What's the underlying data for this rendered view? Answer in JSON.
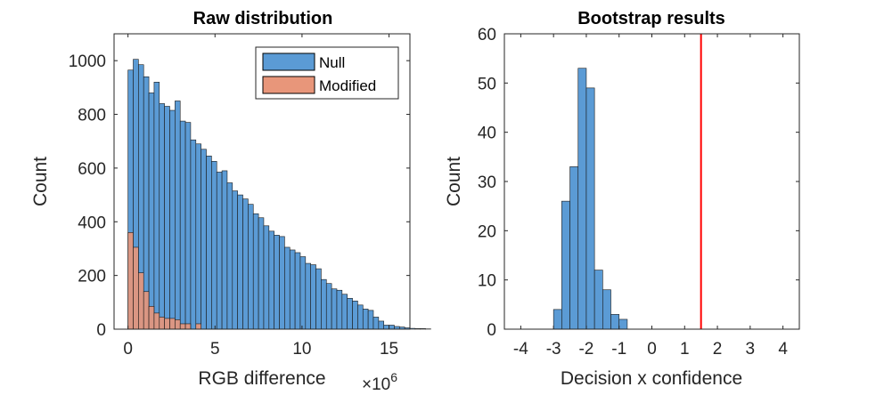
{
  "chart_data": [
    {
      "type": "histogram",
      "title": "Raw distribution",
      "xlabel": "RGB difference",
      "ylabel": "Count",
      "x_exponent_label": "×10",
      "x_exponent": "6",
      "xlim": [
        -0.8,
        16.2
      ],
      "ylim": [
        0,
        1100
      ],
      "xticks": [
        0,
        5,
        10,
        15
      ],
      "yticks": [
        0,
        200,
        400,
        600,
        800,
        1000
      ],
      "grid": false,
      "legend_location": "top-right",
      "bin_width": 0.3,
      "series": [
        {
          "name": "Null",
          "color": "#5B9BD5",
          "bin_start": 0,
          "counts": [
            965,
            1005,
            985,
            940,
            880,
            920,
            840,
            830,
            815,
            850,
            775,
            770,
            705,
            690,
            670,
            645,
            625,
            585,
            590,
            545,
            515,
            500,
            485,
            465,
            430,
            415,
            385,
            365,
            350,
            345,
            305,
            295,
            285,
            270,
            245,
            240,
            225,
            185,
            170,
            150,
            145,
            130,
            115,
            105,
            90,
            75,
            70,
            45,
            30,
            15,
            15,
            10,
            8,
            5,
            3,
            2,
            2,
            1
          ]
        },
        {
          "name": "Modified",
          "color": "#E8967A",
          "bin_start": 0,
          "counts": [
            360,
            305,
            210,
            140,
            85,
            60,
            45,
            40,
            40,
            35,
            20,
            20,
            0,
            20
          ]
        }
      ]
    },
    {
      "type": "histogram",
      "title": "Bootstrap results",
      "xlabel": "Decision x confidence",
      "ylabel": "Count",
      "xlim": [
        -4.5,
        4.5
      ],
      "ylim": [
        0,
        60
      ],
      "xticks": [
        -4,
        -3,
        -2,
        -1,
        0,
        1,
        2,
        3,
        4
      ],
      "yticks": [
        0,
        10,
        20,
        30,
        40,
        50,
        60
      ],
      "grid": false,
      "bin_width": 0.25,
      "series": [
        {
          "color": "#5B9BD5",
          "bin_start": -3.0,
          "counts": [
            4,
            26,
            33,
            53,
            49,
            12,
            8,
            3,
            2
          ]
        }
      ],
      "reference_line": {
        "x": 1.5,
        "color": "#FF0000"
      }
    }
  ]
}
